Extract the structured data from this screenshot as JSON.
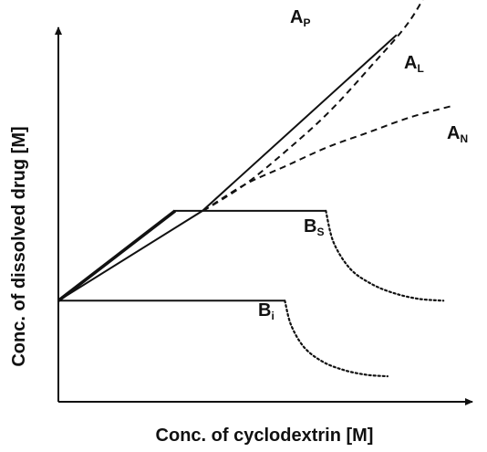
{
  "chart_data": {
    "type": "line",
    "title": "",
    "xlabel": "Conc. of cyclodextrin [M]",
    "ylabel": "Conc. of dissolved drug [M]",
    "xlim": [
      0,
      100
    ],
    "ylim": [
      0,
      100
    ],
    "grid": false,
    "legend": "none",
    "series": [
      {
        "name": "A_P",
        "label_main": "A",
        "label_sub": "P",
        "style": "dashed",
        "x": [
          35,
          45,
          55,
          65,
          75,
          85,
          92
        ],
        "y": [
          51,
          58,
          67,
          77,
          89,
          102,
          116
        ]
      },
      {
        "name": "A_L",
        "label_main": "A",
        "label_sub": "L",
        "style": "solid",
        "x": [
          0,
          34.8,
          81.7
        ],
        "y": [
          27,
          51,
          98
        ]
      },
      {
        "name": "A_N",
        "label_main": "A",
        "label_sub": "N",
        "style": "dashed",
        "x": [
          35,
          45,
          55,
          65,
          75,
          85,
          95
        ],
        "y": [
          51,
          58,
          63,
          68,
          72,
          76,
          79
        ]
      },
      {
        "name": "B_S",
        "label_main": "B",
        "label_sub": "S",
        "style": "solid",
        "x": [
          0,
          28.2,
          64.6
        ],
        "y": [
          27,
          51,
          51
        ]
      },
      {
        "name": "B_S",
        "label_main": "B",
        "label_sub": "S",
        "style": "dotted",
        "x": [
          64.6,
          66.5,
          70.5,
          75.6,
          81.1,
          87.0,
          93.0
        ],
        "y": [
          51,
          42.5,
          35.5,
          31.5,
          29.0,
          27.5,
          27.0
        ]
      },
      {
        "name": "B_i",
        "label_main": "B",
        "label_sub": "i",
        "style": "solid",
        "x": [
          0,
          54.7
        ],
        "y": [
          27,
          27
        ]
      },
      {
        "name": "B_i",
        "label_main": "B",
        "label_sub": "i",
        "style": "dotted",
        "x": [
          54.7,
          56.2,
          59.4,
          64.0,
          69.2,
          74.5,
          79.5
        ],
        "y": [
          27,
          20.5,
          14.5,
          10.6,
          8.4,
          7.2,
          6.8
        ]
      }
    ]
  }
}
